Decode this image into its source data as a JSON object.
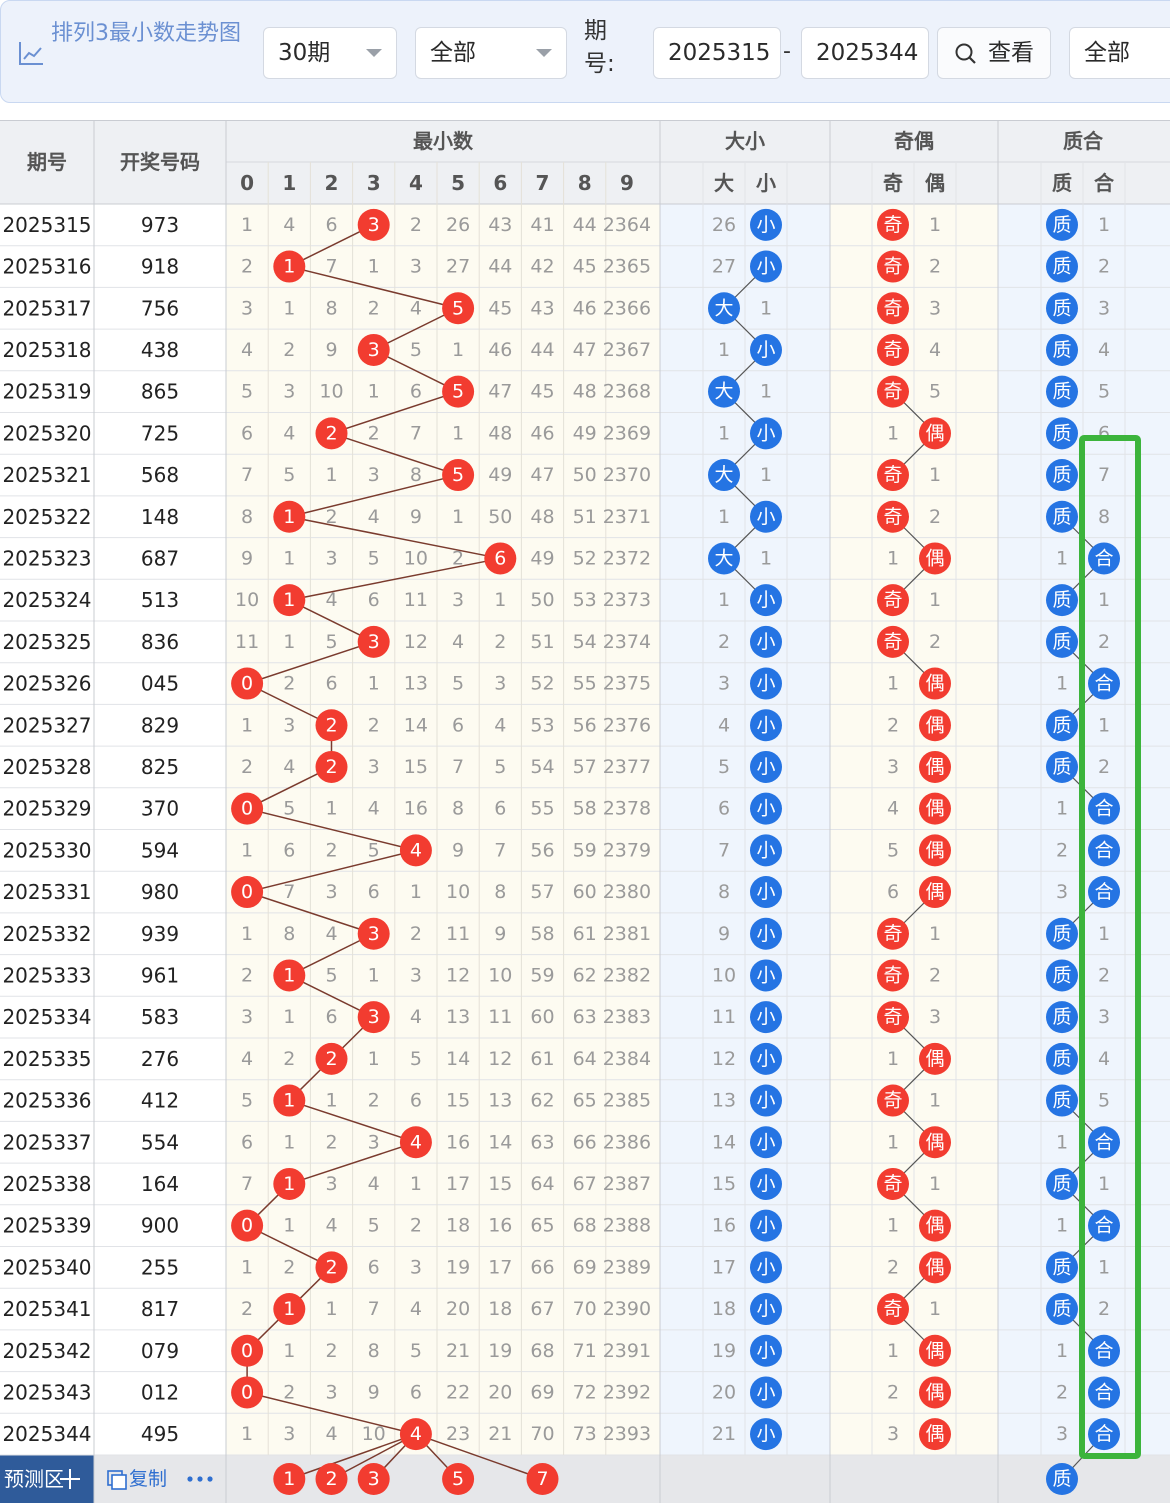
{
  "toolbar": {
    "title": "排列3最小数走势图",
    "chart_icon": "line-chart-icon",
    "period_select": "30期",
    "filter_select": "全部",
    "issue_label": "期号:",
    "issue_from": "2025315",
    "issue_to": "2025344",
    "range_dash": "-",
    "search_label": "查看",
    "search_icon": "search-icon",
    "right_select": "全部"
  },
  "table": {
    "headers": {
      "period": "期号",
      "number": "开奖号码",
      "min_group": "最小数",
      "size_group": "大小",
      "parity_group": "奇偶",
      "prime_group": "质合",
      "digits": [
        "0",
        "1",
        "2",
        "3",
        "4",
        "5",
        "6",
        "7",
        "8",
        "9"
      ],
      "size": [
        "大",
        "小"
      ],
      "parity": [
        "奇",
        "偶"
      ],
      "prime": [
        "质",
        "合"
      ]
    },
    "rows": [
      {
        "p": "2025315",
        "n": "973",
        "m": [
          1,
          4,
          6,
          3,
          2,
          26,
          43,
          41,
          44,
          2364
        ],
        "s": [
          26,
          "小"
        ],
        "o": [
          "奇",
          1
        ],
        "q": [
          "质",
          1
        ]
      },
      {
        "p": "2025316",
        "n": "918",
        "m": [
          2,
          1,
          7,
          1,
          3,
          27,
          44,
          42,
          45,
          2365
        ],
        "s": [
          27,
          "小"
        ],
        "o": [
          "奇",
          2
        ],
        "q": [
          "质",
          2
        ]
      },
      {
        "p": "2025317",
        "n": "756",
        "m": [
          3,
          1,
          8,
          2,
          4,
          5,
          45,
          43,
          46,
          2366
        ],
        "s": [
          "大",
          1
        ],
        "o": [
          "奇",
          3
        ],
        "q": [
          "质",
          3
        ]
      },
      {
        "p": "2025318",
        "n": "438",
        "m": [
          4,
          2,
          9,
          3,
          5,
          1,
          46,
          44,
          47,
          2367
        ],
        "s": [
          1,
          "小"
        ],
        "o": [
          "奇",
          4
        ],
        "q": [
          "质",
          4
        ]
      },
      {
        "p": "2025319",
        "n": "865",
        "m": [
          5,
          3,
          10,
          1,
          6,
          5,
          47,
          45,
          48,
          2368
        ],
        "s": [
          "大",
          1
        ],
        "o": [
          "奇",
          5
        ],
        "q": [
          "质",
          5
        ]
      },
      {
        "p": "2025320",
        "n": "725",
        "m": [
          6,
          4,
          2,
          2,
          7,
          1,
          48,
          46,
          49,
          2369
        ],
        "s": [
          1,
          "小"
        ],
        "o": [
          1,
          "偶"
        ],
        "q": [
          "质",
          6
        ]
      },
      {
        "p": "2025321",
        "n": "568",
        "m": [
          7,
          5,
          1,
          3,
          8,
          5,
          49,
          47,
          50,
          2370
        ],
        "s": [
          "大",
          1
        ],
        "o": [
          "奇",
          1
        ],
        "q": [
          "质",
          7
        ]
      },
      {
        "p": "2025322",
        "n": "148",
        "m": [
          8,
          1,
          2,
          4,
          9,
          1,
          50,
          48,
          51,
          2371
        ],
        "s": [
          1,
          "小"
        ],
        "o": [
          "奇",
          2
        ],
        "q": [
          "质",
          8
        ]
      },
      {
        "p": "2025323",
        "n": "687",
        "m": [
          9,
          1,
          3,
          5,
          10,
          2,
          6,
          49,
          52,
          2372
        ],
        "s": [
          "大",
          1
        ],
        "o": [
          1,
          "偶"
        ],
        "q": [
          1,
          "合"
        ]
      },
      {
        "p": "2025324",
        "n": "513",
        "m": [
          10,
          1,
          4,
          6,
          11,
          3,
          1,
          50,
          53,
          2373
        ],
        "s": [
          1,
          "小"
        ],
        "o": [
          "奇",
          1
        ],
        "q": [
          "质",
          1
        ]
      },
      {
        "p": "2025325",
        "n": "836",
        "m": [
          11,
          1,
          5,
          3,
          12,
          4,
          2,
          51,
          54,
          2374
        ],
        "s": [
          2,
          "小"
        ],
        "o": [
          "奇",
          2
        ],
        "q": [
          "质",
          2
        ]
      },
      {
        "p": "2025326",
        "n": "045",
        "m": [
          0,
          2,
          6,
          1,
          13,
          5,
          3,
          52,
          55,
          2375
        ],
        "s": [
          3,
          "小"
        ],
        "o": [
          1,
          "偶"
        ],
        "q": [
          1,
          "合"
        ]
      },
      {
        "p": "2025327",
        "n": "829",
        "m": [
          1,
          3,
          2,
          2,
          14,
          6,
          4,
          53,
          56,
          2376
        ],
        "s": [
          4,
          "小"
        ],
        "o": [
          2,
          "偶"
        ],
        "q": [
          "质",
          1
        ]
      },
      {
        "p": "2025328",
        "n": "825",
        "m": [
          2,
          4,
          2,
          3,
          15,
          7,
          5,
          54,
          57,
          2377
        ],
        "s": [
          5,
          "小"
        ],
        "o": [
          3,
          "偶"
        ],
        "q": [
          "质",
          2
        ]
      },
      {
        "p": "2025329",
        "n": "370",
        "m": [
          0,
          5,
          1,
          4,
          16,
          8,
          6,
          55,
          58,
          2378
        ],
        "s": [
          6,
          "小"
        ],
        "o": [
          4,
          "偶"
        ],
        "q": [
          1,
          "合"
        ]
      },
      {
        "p": "2025330",
        "n": "594",
        "m": [
          1,
          6,
          2,
          5,
          4,
          9,
          7,
          56,
          59,
          2379
        ],
        "s": [
          7,
          "小"
        ],
        "o": [
          5,
          "偶"
        ],
        "q": [
          2,
          "合"
        ]
      },
      {
        "p": "2025331",
        "n": "980",
        "m": [
          0,
          7,
          3,
          6,
          1,
          10,
          8,
          57,
          60,
          2380
        ],
        "s": [
          8,
          "小"
        ],
        "o": [
          6,
          "偶"
        ],
        "q": [
          3,
          "合"
        ]
      },
      {
        "p": "2025332",
        "n": "939",
        "m": [
          1,
          8,
          4,
          3,
          2,
          11,
          9,
          58,
          61,
          2381
        ],
        "s": [
          9,
          "小"
        ],
        "o": [
          "奇",
          1
        ],
        "q": [
          "质",
          1
        ]
      },
      {
        "p": "2025333",
        "n": "961",
        "m": [
          2,
          1,
          5,
          1,
          3,
          12,
          10,
          59,
          62,
          2382
        ],
        "s": [
          10,
          "小"
        ],
        "o": [
          "奇",
          2
        ],
        "q": [
          "质",
          2
        ]
      },
      {
        "p": "2025334",
        "n": "583",
        "m": [
          3,
          1,
          6,
          3,
          4,
          13,
          11,
          60,
          63,
          2383
        ],
        "s": [
          11,
          "小"
        ],
        "o": [
          "奇",
          3
        ],
        "q": [
          "质",
          3
        ]
      },
      {
        "p": "2025335",
        "n": "276",
        "m": [
          4,
          2,
          2,
          1,
          5,
          14,
          12,
          61,
          64,
          2384
        ],
        "s": [
          12,
          "小"
        ],
        "o": [
          1,
          "偶"
        ],
        "q": [
          "质",
          4
        ]
      },
      {
        "p": "2025336",
        "n": "412",
        "m": [
          5,
          1,
          1,
          2,
          6,
          15,
          13,
          62,
          65,
          2385
        ],
        "s": [
          13,
          "小"
        ],
        "o": [
          "奇",
          1
        ],
        "q": [
          "质",
          5
        ]
      },
      {
        "p": "2025337",
        "n": "554",
        "m": [
          6,
          1,
          2,
          3,
          4,
          16,
          14,
          63,
          66,
          2386
        ],
        "s": [
          14,
          "小"
        ],
        "o": [
          1,
          "偶"
        ],
        "q": [
          1,
          "合"
        ]
      },
      {
        "p": "2025338",
        "n": "164",
        "m": [
          7,
          1,
          3,
          4,
          1,
          17,
          15,
          64,
          67,
          2387
        ],
        "s": [
          15,
          "小"
        ],
        "o": [
          "奇",
          1
        ],
        "q": [
          "质",
          1
        ]
      },
      {
        "p": "2025339",
        "n": "900",
        "m": [
          0,
          1,
          4,
          5,
          2,
          18,
          16,
          65,
          68,
          2388
        ],
        "s": [
          16,
          "小"
        ],
        "o": [
          1,
          "偶"
        ],
        "q": [
          1,
          "合"
        ]
      },
      {
        "p": "2025340",
        "n": "255",
        "m": [
          1,
          2,
          2,
          6,
          3,
          19,
          17,
          66,
          69,
          2389
        ],
        "s": [
          17,
          "小"
        ],
        "o": [
          2,
          "偶"
        ],
        "q": [
          "质",
          1
        ]
      },
      {
        "p": "2025341",
        "n": "817",
        "m": [
          2,
          1,
          1,
          7,
          4,
          20,
          18,
          67,
          70,
          2390
        ],
        "s": [
          18,
          "小"
        ],
        "o": [
          "奇",
          1
        ],
        "q": [
          "质",
          2
        ]
      },
      {
        "p": "2025342",
        "n": "079",
        "m": [
          0,
          1,
          2,
          8,
          5,
          21,
          19,
          68,
          71,
          2391
        ],
        "s": [
          19,
          "小"
        ],
        "o": [
          1,
          "偶"
        ],
        "q": [
          1,
          "合"
        ]
      },
      {
        "p": "2025343",
        "n": "012",
        "m": [
          0,
          2,
          3,
          9,
          6,
          22,
          20,
          69,
          72,
          2392
        ],
        "s": [
          20,
          "小"
        ],
        "o": [
          2,
          "偶"
        ],
        "q": [
          2,
          "合"
        ]
      },
      {
        "p": "2025344",
        "n": "495",
        "m": [
          1,
          3,
          4,
          10,
          4,
          23,
          21,
          70,
          73,
          2393
        ],
        "s": [
          21,
          "小"
        ],
        "o": [
          3,
          "偶"
        ],
        "q": [
          3,
          "合"
        ]
      }
    ],
    "hit_digits": [
      3,
      1,
      5,
      3,
      5,
      2,
      5,
      1,
      6,
      1,
      3,
      0,
      2,
      2,
      0,
      4,
      0,
      3,
      1,
      3,
      2,
      1,
      4,
      1,
      0,
      2,
      1,
      0,
      0,
      4
    ],
    "predict": {
      "label": "预测区",
      "plus_icon": "plus-icon",
      "copy_icon": "copy-icon",
      "copy_label": "复制",
      "more_icon": "more-dots-icon",
      "balls": [
        "1",
        "2",
        "3",
        "5",
        "7"
      ],
      "prime_ball": "质"
    }
  },
  "colors": {
    "red": "#f23c30",
    "blue": "#2574e3",
    "header_bg": "#eef0f3",
    "digit_bg": "#fdfbf1",
    "band_bg": "#eff5fd",
    "highlight": "#3cb43c"
  }
}
